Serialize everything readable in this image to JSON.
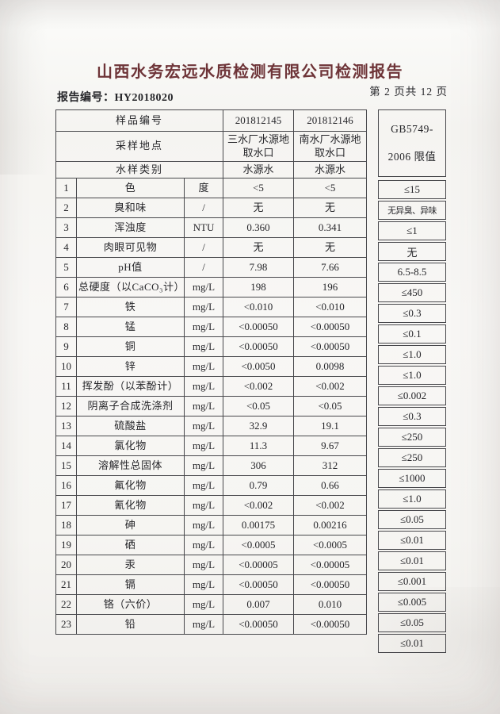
{
  "title": "山西水务宏远水质检测有限公司检测报告",
  "meta": {
    "report_no_label": "报告编号：",
    "report_no": "HY2018020",
    "page_info": "第 2 页共 12 页"
  },
  "colors": {
    "title_ink": "#6e3438",
    "body_ink": "#26262a",
    "table_line": "#48484c",
    "paper": "#f5f4f1"
  },
  "table": {
    "header": {
      "sample_id_label": "样品编号",
      "sampling_site_label": "采样地点",
      "sample_type_label": "水样类别",
      "samples": [
        {
          "id": "201812145",
          "site": "三水厂水源地取水口",
          "type": "水源水"
        },
        {
          "id": "201812146",
          "site": "南水厂水源地取水口",
          "type": "水源水"
        }
      ],
      "limit_line1": "GB5749-",
      "limit_line2": "2006 限值"
    },
    "rows": [
      {
        "no": "1",
        "item": "色",
        "unit": "度",
        "v1": "<5",
        "v2": "<5",
        "limit": "≤15"
      },
      {
        "no": "2",
        "item": "臭和味",
        "unit": "/",
        "v1": "无",
        "v2": "无",
        "limit": "无异臭、异味"
      },
      {
        "no": "3",
        "item": "浑浊度",
        "unit": "NTU",
        "v1": "0.360",
        "v2": "0.341",
        "limit": "≤1"
      },
      {
        "no": "4",
        "item": "肉眼可见物",
        "unit": "/",
        "v1": "无",
        "v2": "无",
        "limit": "无"
      },
      {
        "no": "5",
        "item": "pH值",
        "unit": "/",
        "v1": "7.98",
        "v2": "7.66",
        "limit": "6.5-8.5"
      },
      {
        "no": "6",
        "item": "总硬度（以CaCO₃计）",
        "unit": "mg/L",
        "v1": "198",
        "v2": "196",
        "limit": "≤450"
      },
      {
        "no": "7",
        "item": "铁",
        "unit": "mg/L",
        "v1": "<0.010",
        "v2": "<0.010",
        "limit": "≤0.3"
      },
      {
        "no": "8",
        "item": "锰",
        "unit": "mg/L",
        "v1": "<0.00050",
        "v2": "<0.00050",
        "limit": "≤0.1"
      },
      {
        "no": "9",
        "item": "铜",
        "unit": "mg/L",
        "v1": "<0.00050",
        "v2": "<0.00050",
        "limit": "≤1.0"
      },
      {
        "no": "10",
        "item": "锌",
        "unit": "mg/L",
        "v1": "<0.0050",
        "v2": "0.0098",
        "limit": "≤1.0"
      },
      {
        "no": "11",
        "item": "挥发酚（以苯酚计）",
        "unit": "mg/L",
        "v1": "<0.002",
        "v2": "<0.002",
        "limit": "≤0.002"
      },
      {
        "no": "12",
        "item": "阴离子合成洗涤剂",
        "unit": "mg/L",
        "v1": "<0.05",
        "v2": "<0.05",
        "limit": "≤0.3"
      },
      {
        "no": "13",
        "item": "硫酸盐",
        "unit": "mg/L",
        "v1": "32.9",
        "v2": "19.1",
        "limit": "≤250"
      },
      {
        "no": "14",
        "item": "氯化物",
        "unit": "mg/L",
        "v1": "11.3",
        "v2": "9.67",
        "limit": "≤250"
      },
      {
        "no": "15",
        "item": "溶解性总固体",
        "unit": "mg/L",
        "v1": "306",
        "v2": "312",
        "limit": "≤1000"
      },
      {
        "no": "16",
        "item": "氟化物",
        "unit": "mg/L",
        "v1": "0.79",
        "v2": "0.66",
        "limit": "≤1.0"
      },
      {
        "no": "17",
        "item": "氰化物",
        "unit": "mg/L",
        "v1": "<0.002",
        "v2": "<0.002",
        "limit": "≤0.05"
      },
      {
        "no": "18",
        "item": "砷",
        "unit": "mg/L",
        "v1": "0.00175",
        "v2": "0.00216",
        "limit": "≤0.01"
      },
      {
        "no": "19",
        "item": "硒",
        "unit": "mg/L",
        "v1": "<0.0005",
        "v2": "<0.0005",
        "limit": "≤0.01"
      },
      {
        "no": "20",
        "item": "汞",
        "unit": "mg/L",
        "v1": "<0.00005",
        "v2": "<0.00005",
        "limit": "≤0.001"
      },
      {
        "no": "21",
        "item": "镉",
        "unit": "mg/L",
        "v1": "<0.00050",
        "v2": "<0.00050",
        "limit": "≤0.005"
      },
      {
        "no": "22",
        "item": "铬（六价）",
        "unit": "mg/L",
        "v1": "0.007",
        "v2": "0.010",
        "limit": "≤0.05"
      },
      {
        "no": "23",
        "item": "铅",
        "unit": "mg/L",
        "v1": "<0.00050",
        "v2": "<0.00050",
        "limit": "≤0.01"
      }
    ]
  }
}
